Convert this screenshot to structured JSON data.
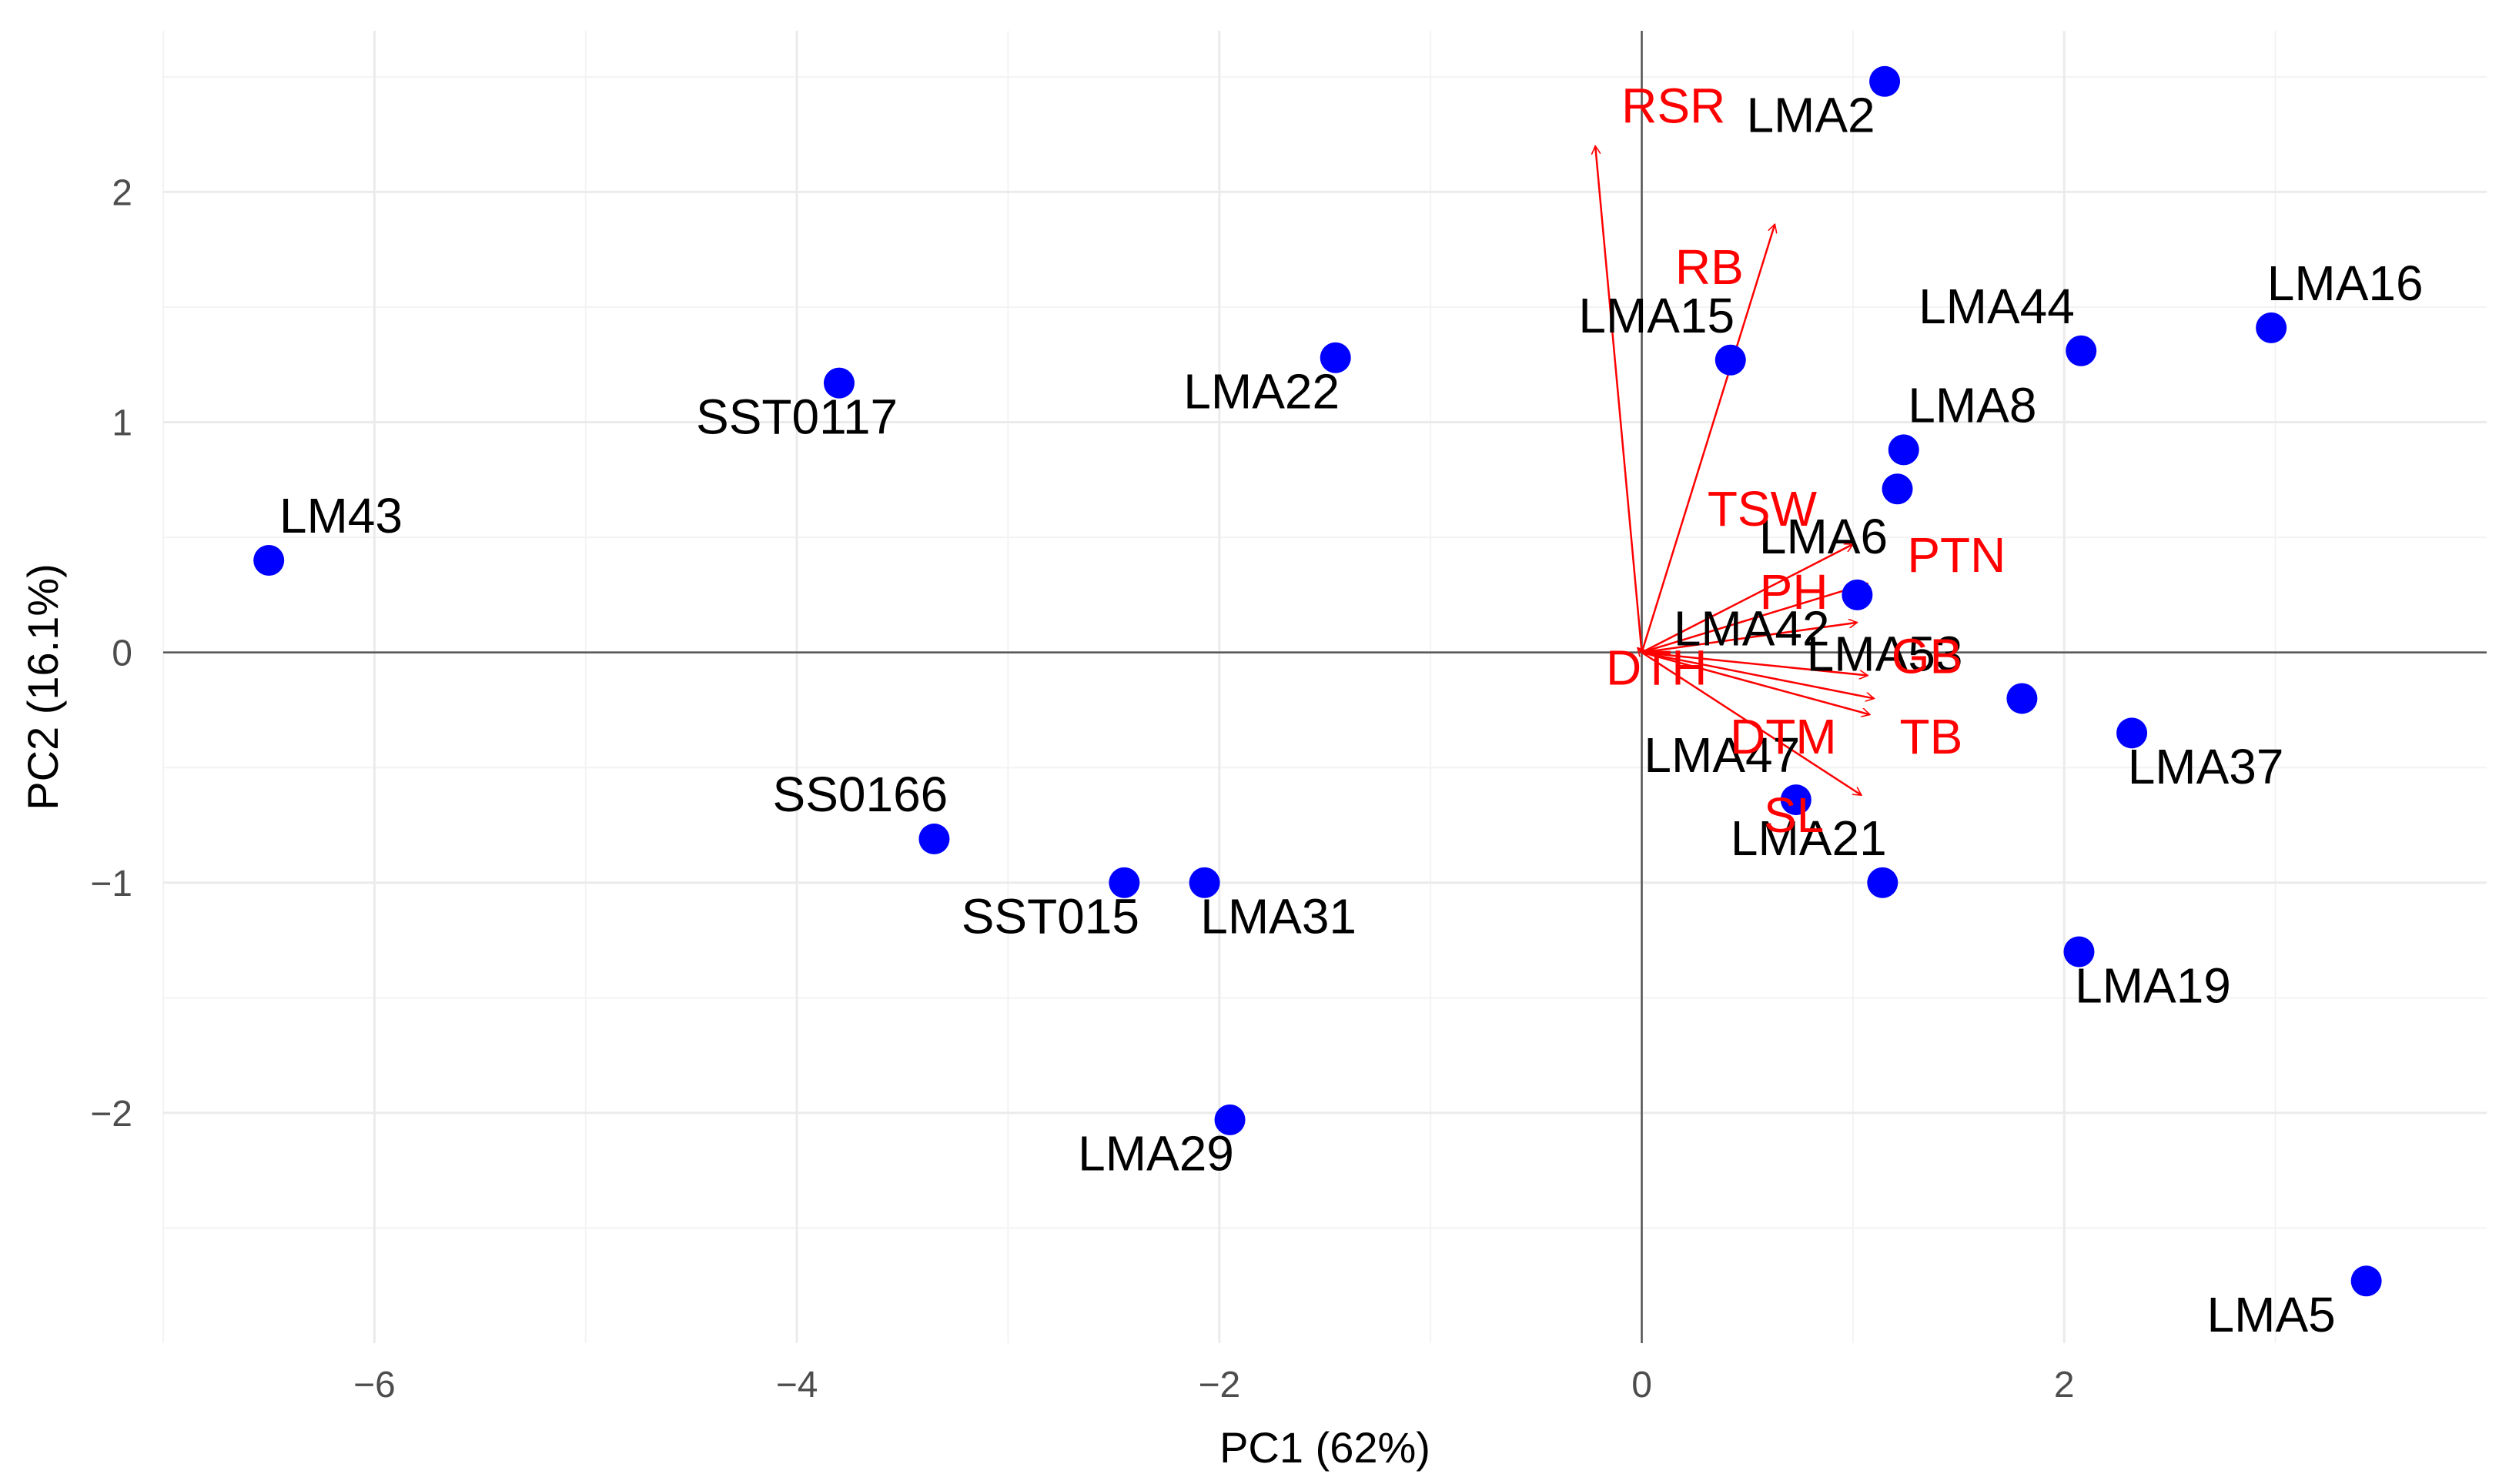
{
  "chart_data": {
    "type": "scatter",
    "subtype": "pca-biplot",
    "xlabel": "PC1 (62%)",
    "ylabel": "PC2 (16.1%)",
    "xlim": [
      -7,
      4
    ],
    "ylim": [
      -3,
      2.7
    ],
    "x_ticks": [
      -6,
      -4,
      -2,
      0,
      2
    ],
    "y_ticks": [
      -2,
      -1,
      0,
      1,
      2
    ],
    "x_tick_labels": [
      "−6",
      "−4",
      "−2",
      "0",
      "2"
    ],
    "y_tick_labels": [
      "−2",
      "−1",
      "0",
      "1",
      "2"
    ],
    "grid": true,
    "point_color": "#0000ff",
    "arrow_color": "#ff0000",
    "label_color": "#000000",
    "points": [
      {
        "label": "LM43",
        "x": -6.5,
        "y": 0.4,
        "anchor": "start",
        "dx": 0.05,
        "dy": 0.12
      },
      {
        "label": "SST0117",
        "x": -3.8,
        "y": 1.17,
        "anchor": "middle",
        "dx": -0.2,
        "dy": -0.22
      },
      {
        "label": "LMA22",
        "x": -1.45,
        "y": 1.28,
        "anchor": "middle",
        "dx": -0.35,
        "dy": -0.22
      },
      {
        "label": "SS0166",
        "x": -3.35,
        "y": -0.81,
        "anchor": "middle",
        "dx": -0.35,
        "dy": 0.12
      },
      {
        "label": "SST015",
        "x": -2.45,
        "y": -1.0,
        "anchor": "middle",
        "dx": -0.35,
        "dy": -0.22
      },
      {
        "label": "LMA31",
        "x": -2.07,
        "y": -1.0,
        "anchor": "middle",
        "dx": 0.35,
        "dy": -0.22
      },
      {
        "label": "LMA29",
        "x": -1.95,
        "y": -2.03,
        "anchor": "middle",
        "dx": -0.35,
        "dy": -0.22
      },
      {
        "label": "LMA2",
        "x": 1.15,
        "y": 2.48,
        "anchor": "middle",
        "dx": -0.35,
        "dy": -0.22
      },
      {
        "label": "LMA15",
        "x": 0.42,
        "y": 1.27,
        "anchor": "middle",
        "dx": -0.35,
        "dy": 0.12
      },
      {
        "label": "LMA44",
        "x": 2.08,
        "y": 1.31,
        "anchor": "middle",
        "dx": -0.4,
        "dy": 0.12
      },
      {
        "label": "LMA16",
        "x": 2.98,
        "y": 1.41,
        "anchor": "middle",
        "dx": 0.35,
        "dy": 0.12
      },
      {
        "label": "LMA8",
        "x": 1.24,
        "y": 0.88,
        "anchor": "start",
        "dx": 0.02,
        "dy": 0.12
      },
      {
        "label": "LMA6",
        "x": 1.21,
        "y": 0.71,
        "anchor": "middle",
        "dx": -0.35,
        "dy": -0.28
      },
      {
        "label": "LMA42",
        "x": 1.02,
        "y": 0.25,
        "anchor": "middle",
        "dx": -0.5,
        "dy": -0.22
      },
      {
        "label": "LMA53",
        "x": 1.8,
        "y": -0.2,
        "anchor": "middle",
        "dx": -0.65,
        "dy": 0.12
      },
      {
        "label": "LMA37",
        "x": 2.32,
        "y": -0.35,
        "anchor": "middle",
        "dx": 0.35,
        "dy": -0.22
      },
      {
        "label": "LMA47",
        "x": 0.73,
        "y": -0.64,
        "anchor": "middle",
        "dx": -0.35,
        "dy": 0.12
      },
      {
        "label": "LMA21",
        "x": 1.14,
        "y": -1.0,
        "anchor": "middle",
        "dx": -0.35,
        "dy": 0.12
      },
      {
        "label": "LMA19",
        "x": 2.07,
        "y": -1.3,
        "anchor": "middle",
        "dx": 0.35,
        "dy": -0.22
      },
      {
        "label": "LMA5",
        "x": 3.43,
        "y": -2.73,
        "anchor": "middle",
        "dx": -0.45,
        "dy": -0.22
      }
    ],
    "variables": [
      {
        "label": "RSR",
        "x": -0.22,
        "y": 2.2,
        "label_x": 0.15,
        "label_y": 2.3
      },
      {
        "label": "RB",
        "x": 0.63,
        "y": 1.86,
        "label_x": 0.32,
        "label_y": 1.6
      },
      {
        "label": "TSW",
        "x": 1.0,
        "y": 0.47,
        "label_x": 0.57,
        "label_y": 0.55
      },
      {
        "label": "PTN",
        "x": 1.07,
        "y": 0.3,
        "label_x": 1.49,
        "label_y": 0.35
      },
      {
        "label": "PH",
        "x": 1.02,
        "y": 0.13,
        "label_x": 0.72,
        "label_y": 0.19
      },
      {
        "label": "DTH",
        "x": -0.02,
        "y": 0.02,
        "label_x": 0.07,
        "label_y": -0.14
      },
      {
        "label": "GB",
        "x": 1.1,
        "y": -0.2,
        "label_x": 1.35,
        "label_y": -0.09
      },
      {
        "label": "DTM",
        "x": 1.08,
        "y": -0.27,
        "label_x": 0.67,
        "label_y": -0.44
      },
      {
        "label": "TB",
        "x": 1.07,
        "y": -0.1,
        "label_x": 1.37,
        "label_y": -0.44
      },
      {
        "label": "SL",
        "x": 1.04,
        "y": -0.62,
        "label_x": 0.72,
        "label_y": -0.78
      }
    ]
  }
}
